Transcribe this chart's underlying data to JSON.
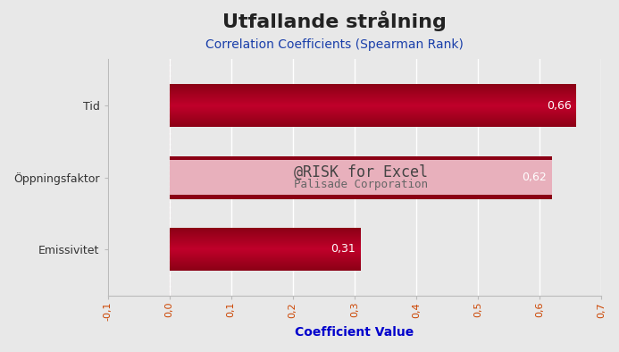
{
  "title": "Utfallande strålning",
  "subtitle": "Correlation Coefficients (Spearman Rank)",
  "xlabel": "Coefficient Value",
  "categories": [
    "Emissivitet",
    "Öppningsfaktor",
    "Tid"
  ],
  "values": [
    0.31,
    0.62,
    0.66
  ],
  "bar_dark": "#8b0015",
  "bar_mid": "#c0002a",
  "bar_light_pink": "#e8b0bc",
  "xlim": [
    -0.1,
    0.7
  ],
  "xticks": [
    -0.1,
    0.0,
    0.1,
    0.2,
    0.3,
    0.4,
    0.5,
    0.6,
    0.7
  ],
  "xtick_labels": [
    "-0,1",
    "0,0",
    "0,1",
    "0,2",
    "0,3",
    "0,4",
    "0,5",
    "0,6",
    "0,7"
  ],
  "zero_line_x": 0.0,
  "watermark_line1": "@RISK for Excel",
  "watermark_line2": "Palisade Corporation",
  "background_color": "#e8e8e8",
  "plot_bg_color": "#e8e8e8",
  "title_fontsize": 16,
  "subtitle_fontsize": 10,
  "xlabel_fontsize": 10,
  "bar_height": 0.6
}
